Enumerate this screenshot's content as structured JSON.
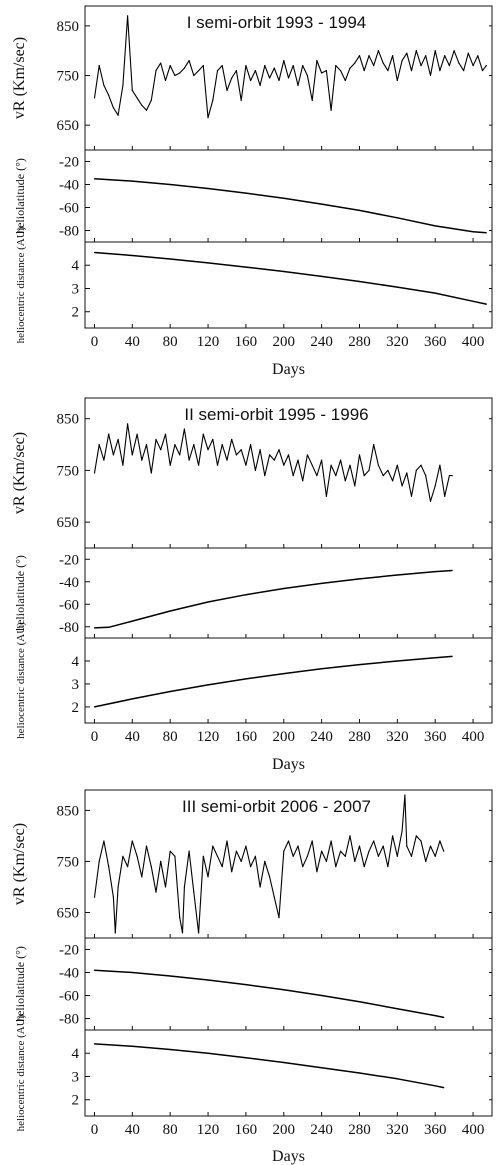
{
  "figure": {
    "xlabel": "Days"
  },
  "chart_data": [
    {
      "type": "line",
      "title": "I  semi-orbit  1993 - 1994",
      "xlabel": "Days",
      "xlim": [
        -10,
        420
      ],
      "x_ticks": [
        0,
        40,
        80,
        120,
        160,
        200,
        240,
        280,
        320,
        360,
        400
      ],
      "grid": false,
      "panels": [
        {
          "key": "speed",
          "ylabel": "vR (Km/sec)",
          "ylim": [
            600,
            890
          ],
          "y_ticks": [
            650,
            750,
            850
          ],
          "series": [
            {
              "x": [
                0,
                5,
                10,
                15,
                20,
                25,
                30,
                35,
                40,
                45,
                50,
                55,
                60,
                65,
                70,
                75,
                80,
                85,
                90,
                95,
                100,
                105,
                110,
                115,
                120,
                125,
                130,
                135,
                140,
                145,
                150,
                155,
                160,
                165,
                170,
                175,
                180,
                185,
                190,
                195,
                200,
                205,
                210,
                215,
                220,
                225,
                230,
                235,
                240,
                245,
                250,
                255,
                260,
                265,
                270,
                275,
                280,
                285,
                290,
                295,
                300,
                305,
                310,
                315,
                320,
                325,
                330,
                335,
                340,
                345,
                350,
                355,
                360,
                365,
                370,
                375,
                380,
                385,
                390,
                395,
                400,
                405,
                410,
                414
              ],
              "y": [
                705,
                770,
                730,
                710,
                685,
                670,
                730,
                870,
                720,
                705,
                690,
                680,
                700,
                760,
                775,
                740,
                770,
                750,
                755,
                765,
                780,
                750,
                760,
                770,
                665,
                700,
                760,
                770,
                720,
                745,
                760,
                700,
                770,
                740,
                760,
                730,
                770,
                745,
                765,
                740,
                780,
                745,
                770,
                730,
                770,
                750,
                700,
                780,
                755,
                760,
                680,
                770,
                760,
                740,
                765,
                775,
                790,
                760,
                790,
                770,
                800,
                775,
                760,
                790,
                740,
                780,
                795,
                760,
                800,
                770,
                790,
                750,
                800,
                760,
                790,
                770,
                800,
                775,
                760,
                795,
                770,
                790,
                760,
                770
              ]
            }
          ]
        },
        {
          "key": "latitude",
          "ylabel": "heliolatitude (°)",
          "ylim": [
            -90,
            -10
          ],
          "y_ticks": [
            -20,
            -40,
            -60,
            -80
          ],
          "series": [
            {
              "x": [
                0,
                40,
                80,
                120,
                160,
                200,
                240,
                280,
                320,
                360,
                400,
                414
              ],
              "y": [
                -35,
                -37,
                -40,
                -43.5,
                -47.5,
                -52,
                -57,
                -62.5,
                -69,
                -76,
                -81,
                -82
              ]
            }
          ]
        },
        {
          "key": "distance",
          "ylabel": "heliocentric distance (AU)",
          "ylim": [
            1.3,
            5.0
          ],
          "y_ticks": [
            2,
            3,
            4
          ],
          "series": [
            {
              "x": [
                0,
                40,
                80,
                120,
                160,
                200,
                240,
                280,
                320,
                360,
                400,
                414
              ],
              "y": [
                4.55,
                4.42,
                4.27,
                4.1,
                3.92,
                3.73,
                3.52,
                3.3,
                3.06,
                2.8,
                2.45,
                2.33
              ]
            }
          ]
        }
      ]
    },
    {
      "type": "line",
      "title": "II  semi-orbit  1995 - 1996",
      "xlabel": "Days",
      "xlim": [
        -10,
        420
      ],
      "x_ticks": [
        0,
        40,
        80,
        120,
        160,
        200,
        240,
        280,
        320,
        360,
        400
      ],
      "grid": false,
      "panels": [
        {
          "key": "speed",
          "ylabel": "vR (Km/sec)",
          "ylim": [
            600,
            890
          ],
          "y_ticks": [
            650,
            750,
            850
          ],
          "series": [
            {
              "x": [
                0,
                5,
                10,
                15,
                20,
                25,
                30,
                35,
                40,
                45,
                50,
                55,
                60,
                65,
                70,
                75,
                80,
                85,
                90,
                95,
                100,
                105,
                110,
                115,
                120,
                125,
                130,
                135,
                140,
                145,
                150,
                155,
                160,
                165,
                170,
                175,
                180,
                185,
                190,
                195,
                200,
                205,
                210,
                215,
                220,
                225,
                230,
                235,
                240,
                245,
                250,
                255,
                260,
                265,
                270,
                275,
                280,
                285,
                290,
                295,
                300,
                305,
                310,
                315,
                320,
                325,
                330,
                335,
                340,
                345,
                350,
                355,
                360,
                365,
                370,
                375,
                378
              ],
              "y": [
                745,
                800,
                770,
                820,
                780,
                810,
                760,
                840,
                780,
                820,
                770,
                800,
                745,
                810,
                790,
                820,
                760,
                800,
                780,
                830,
                770,
                800,
                760,
                820,
                790,
                810,
                760,
                800,
                770,
                810,
                780,
                790,
                760,
                800,
                750,
                790,
                740,
                780,
                770,
                790,
                760,
                780,
                740,
                770,
                730,
                780,
                760,
                740,
                770,
                700,
                760,
                740,
                770,
                730,
                760,
                720,
                780,
                740,
                750,
                800,
                760,
                740,
                750,
                730,
                760,
                720,
                745,
                700,
                750,
                760,
                740,
                690,
                720,
                760,
                700,
                740,
                740
              ]
            }
          ]
        },
        {
          "key": "latitude",
          "ylabel": "heliolatitude (°)",
          "ylim": [
            -90,
            -10
          ],
          "y_ticks": [
            -20,
            -40,
            -60,
            -80
          ],
          "series": [
            {
              "x": [
                0,
                15,
                40,
                80,
                120,
                160,
                200,
                240,
                280,
                320,
                360,
                378
              ],
              "y": [
                -81,
                -80.5,
                -75,
                -66,
                -58,
                -51.5,
                -46,
                -41.5,
                -37.5,
                -34,
                -31,
                -30
              ]
            }
          ]
        },
        {
          "key": "distance",
          "ylabel": "heliocentric distance (AU)",
          "ylim": [
            1.3,
            5.0
          ],
          "y_ticks": [
            2,
            3,
            4
          ],
          "series": [
            {
              "x": [
                0,
                40,
                80,
                120,
                160,
                200,
                240,
                280,
                320,
                360,
                378
              ],
              "y": [
                2.0,
                2.35,
                2.67,
                2.96,
                3.22,
                3.45,
                3.66,
                3.84,
                4.0,
                4.14,
                4.2
              ]
            }
          ]
        }
      ]
    },
    {
      "type": "line",
      "title": "III  semi-orbit  2006 - 2007",
      "xlabel": "Days",
      "xlim": [
        -10,
        420
      ],
      "x_ticks": [
        0,
        40,
        80,
        120,
        160,
        200,
        240,
        280,
        320,
        360,
        400
      ],
      "grid": false,
      "panels": [
        {
          "key": "speed",
          "ylabel": "vR (Km/sec)",
          "ylim": [
            600,
            890
          ],
          "y_ticks": [
            650,
            750,
            850
          ],
          "series": [
            {
              "x": [
                0,
                5,
                10,
                15,
                20,
                22,
                25,
                30,
                35,
                40,
                45,
                50,
                55,
                60,
                65,
                70,
                75,
                80,
                85,
                90,
                93,
                95,
                100,
                105,
                110,
                115,
                120,
                125,
                130,
                135,
                140,
                145,
                150,
                155,
                160,
                165,
                170,
                175,
                180,
                185,
                190,
                195,
                200,
                205,
                210,
                215,
                220,
                225,
                230,
                235,
                240,
                245,
                250,
                255,
                260,
                265,
                270,
                275,
                280,
                285,
                290,
                295,
                300,
                305,
                310,
                315,
                320,
                325,
                328,
                330,
                335,
                340,
                345,
                350,
                355,
                360,
                365,
                369
              ],
              "y": [
                680,
                750,
                790,
                740,
                680,
                610,
                700,
                760,
                740,
                790,
                760,
                720,
                780,
                740,
                690,
                750,
                700,
                770,
                760,
                640,
                610,
                700,
                770,
                690,
                610,
                760,
                720,
                780,
                760,
                740,
                790,
                730,
                770,
                750,
                780,
                740,
                760,
                700,
                750,
                720,
                680,
                640,
                770,
                790,
                760,
                780,
                740,
                760,
                790,
                730,
                770,
                750,
                790,
                740,
                770,
                760,
                800,
                750,
                780,
                740,
                770,
                790,
                760,
                780,
                740,
                800,
                760,
                810,
                880,
                780,
                760,
                800,
                790,
                750,
                780,
                760,
                790,
                770
              ]
            }
          ]
        },
        {
          "key": "latitude",
          "ylabel": "heliolatitude (°)",
          "ylim": [
            -90,
            -10
          ],
          "y_ticks": [
            -20,
            -40,
            -60,
            -80
          ],
          "series": [
            {
              "x": [
                0,
                40,
                80,
                120,
                160,
                200,
                240,
                280,
                320,
                360,
                369
              ],
              "y": [
                -38,
                -40,
                -43,
                -46.5,
                -50.5,
                -55,
                -60,
                -65.5,
                -71.5,
                -77.5,
                -79
              ]
            }
          ]
        },
        {
          "key": "distance",
          "ylabel": "heliocentric distance (AU)",
          "ylim": [
            1.3,
            5.0
          ],
          "y_ticks": [
            2,
            3,
            4
          ],
          "series": [
            {
              "x": [
                0,
                40,
                80,
                120,
                160,
                200,
                240,
                280,
                320,
                360,
                369
              ],
              "y": [
                4.4,
                4.3,
                4.16,
                4.0,
                3.81,
                3.6,
                3.38,
                3.15,
                2.9,
                2.6,
                2.52
              ]
            }
          ]
        }
      ]
    }
  ]
}
